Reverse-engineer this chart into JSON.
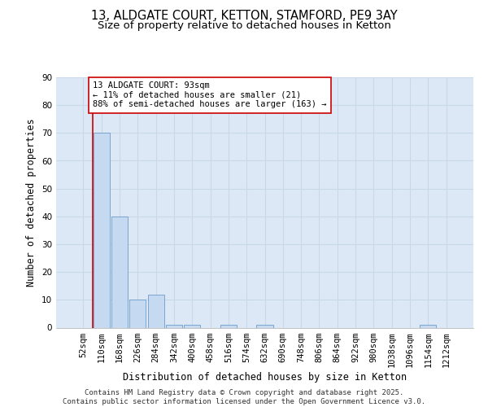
{
  "title_line1": "13, ALDGATE COURT, KETTON, STAMFORD, PE9 3AY",
  "title_line2": "Size of property relative to detached houses in Ketton",
  "xlabel": "Distribution of detached houses by size in Ketton",
  "ylabel": "Number of detached properties",
  "categories": [
    "52sqm",
    "110sqm",
    "168sqm",
    "226sqm",
    "284sqm",
    "342sqm",
    "400sqm",
    "458sqm",
    "516sqm",
    "574sqm",
    "632sqm",
    "690sqm",
    "748sqm",
    "806sqm",
    "864sqm",
    "922sqm",
    "980sqm",
    "1038sqm",
    "1096sqm",
    "1154sqm",
    "1212sqm"
  ],
  "values": [
    0,
    70,
    40,
    10,
    12,
    1,
    1,
    0,
    1,
    0,
    1,
    0,
    0,
    0,
    0,
    0,
    0,
    0,
    0,
    1,
    0
  ],
  "bar_color": "#c5d9f0",
  "bar_edge_color": "#5a8fc3",
  "grid_color": "#c8d8e8",
  "background_color": "#dce8f5",
  "annotation_box_text": "13 ALDGATE COURT: 93sqm\n← 11% of detached houses are smaller (21)\n88% of semi-detached houses are larger (163) →",
  "annotation_box_color": "#cc0000",
  "ylim": [
    0,
    90
  ],
  "yticks": [
    0,
    10,
    20,
    30,
    40,
    50,
    60,
    70,
    80,
    90
  ],
  "footer_text": "Contains HM Land Registry data © Crown copyright and database right 2025.\nContains public sector information licensed under the Open Government Licence v3.0.",
  "title_fontsize": 10.5,
  "subtitle_fontsize": 9.5,
  "axis_label_fontsize": 8.5,
  "tick_fontsize": 7.5,
  "annotation_fontsize": 7.5,
  "footer_fontsize": 6.5
}
